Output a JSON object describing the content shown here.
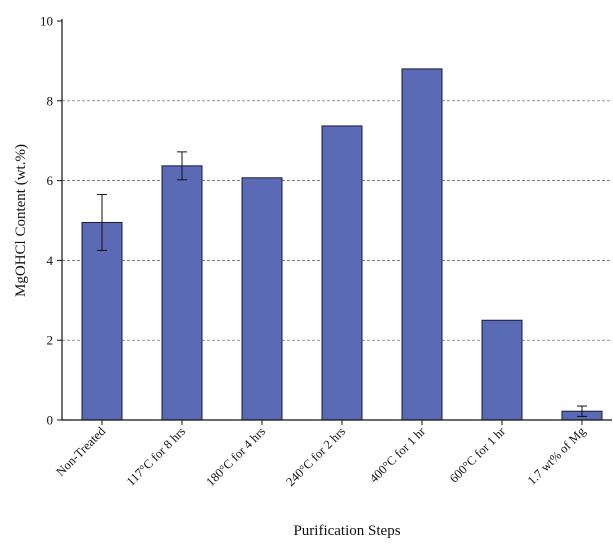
{
  "chart_data": {
    "type": "bar",
    "title": "",
    "xlabel": "Purification Steps",
    "ylabel": "MgOHCl Content (wt.%)",
    "ylim": [
      0,
      10
    ],
    "yticks": [
      0,
      2,
      4,
      6,
      8,
      10
    ],
    "grid": {
      "y": true,
      "style": "dashed",
      "values": [
        2,
        4,
        6,
        8
      ]
    },
    "categories": [
      "Non-Treated",
      "117°C for 8 hrs",
      "180°C for 4 hrs",
      "240°C for 2 hrs",
      "400°C for 1 hr",
      "600°C for 1 hr",
      "1.7 wt% of Mg"
    ],
    "values": [
      4.95,
      6.37,
      6.07,
      7.37,
      8.8,
      2.5,
      0.22
    ],
    "errors": [
      0.7,
      0.35,
      null,
      null,
      null,
      null,
      0.13
    ],
    "bar_color": "#5b6ab4",
    "bar_edge_color": "#1a1a40"
  }
}
